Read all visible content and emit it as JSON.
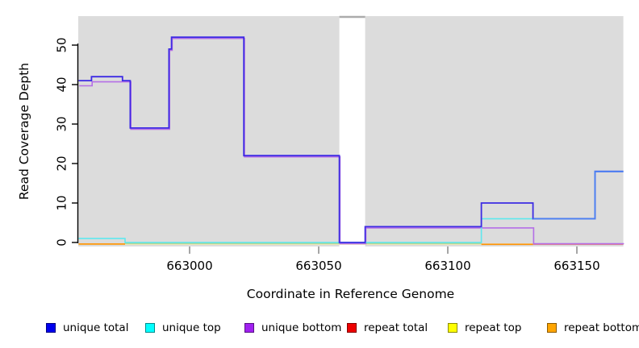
{
  "figure": {
    "xlabel": "Coordinate in Reference Genome",
    "ylabel": "Read Coverage Depth"
  },
  "chart_data": {
    "type": "line",
    "subtype": "step-read-coverage",
    "title": "",
    "xlabel": "Coordinate in Reference Genome",
    "ylabel": "Read Coverage Depth",
    "xlim": [
      662957,
      663168
    ],
    "ylim": [
      0,
      57
    ],
    "x_ticks": [
      663000,
      663050,
      663100,
      663150
    ],
    "y_ticks": [
      0,
      10,
      20,
      30,
      40,
      50
    ],
    "grid": false,
    "panel_background": "#DCDCDC",
    "gap_region": {
      "from": 663058,
      "to": 663068,
      "note": "white no-data band with gray cap at top"
    },
    "series": [
      {
        "name": "unique total",
        "color": "#0000EE",
        "render_color": "#3D2BE3",
        "render_color_right": "#4C80F2",
        "color_split_at": 663133,
        "end": 663168,
        "steps": [
          [
            662957,
            41
          ],
          [
            662962,
            42
          ],
          [
            662974,
            41
          ],
          [
            662977,
            29
          ],
          [
            662992,
            49
          ],
          [
            662993,
            52
          ],
          [
            663021,
            22
          ],
          [
            663058,
            0
          ],
          [
            663068,
            4
          ],
          [
            663113,
            10
          ],
          [
            663133,
            6
          ],
          [
            663157,
            18
          ]
        ]
      },
      {
        "name": "unique top",
        "color": "#00FFFF",
        "render_color": "#5FE8EE",
        "end": 663168,
        "steps": [
          [
            662957,
            1
          ],
          [
            662975,
            0
          ],
          [
            663113,
            6
          ],
          [
            663157,
            18
          ]
        ]
      },
      {
        "name": "unique bottom",
        "color": "#A020F0",
        "render_color": "#B46FE6",
        "end": 663168,
        "steps": [
          [
            662957,
            40
          ],
          [
            662962,
            41
          ],
          [
            662977,
            29
          ],
          [
            662992,
            49
          ],
          [
            662993,
            52
          ],
          [
            663021,
            22
          ],
          [
            663058,
            0
          ],
          [
            663068,
            4
          ],
          [
            663133,
            0
          ]
        ]
      },
      {
        "name": "repeat total",
        "color": "#EE0000",
        "render_color": "#E04B6E",
        "end": 663168,
        "steps": [
          [
            662957,
            0
          ]
        ]
      },
      {
        "name": "repeat top",
        "color": "#FFFF00",
        "render_color": "#EBE6AE",
        "end": 663168,
        "steps": [
          [
            662957,
            0
          ]
        ]
      },
      {
        "name": "repeat bottom",
        "color": "#FFA500",
        "render_color": "#FF9100",
        "end": 663168,
        "steps": [
          [
            662957,
            0
          ]
        ]
      }
    ],
    "zero_overlays": [
      {
        "from": 662957,
        "to": 663168,
        "color": "#EBE6AE",
        "dy": 2.1,
        "series": "repeat top"
      },
      {
        "from": 662975,
        "to": 663113,
        "color": "#8CCF8C",
        "dy": 0.8,
        "series": "unique top + repeat top blend"
      },
      {
        "from": 662957,
        "to": 662975,
        "color": "#FF9100",
        "dy": 1.9,
        "series": "repeat bottom"
      },
      {
        "from": 663113,
        "to": 663133,
        "color": "#FF9100",
        "dy": 2.3,
        "series": "repeat bottom"
      },
      {
        "from": 663133,
        "to": 663168,
        "color": "#E04B6E",
        "dy": 2.0,
        "series": "repeat total"
      }
    ],
    "legend_position": "bottom",
    "legend": [
      {
        "label": "unique total",
        "color": "#0000EE"
      },
      {
        "label": "unique top",
        "color": "#00FFFF"
      },
      {
        "label": "unique bottom",
        "color": "#A020F0"
      },
      {
        "label": "repeat total",
        "color": "#EE0000"
      },
      {
        "label": "repeat top",
        "color": "#FFFF00"
      },
      {
        "label": "repeat bottom",
        "color": "#FFA500"
      }
    ]
  }
}
